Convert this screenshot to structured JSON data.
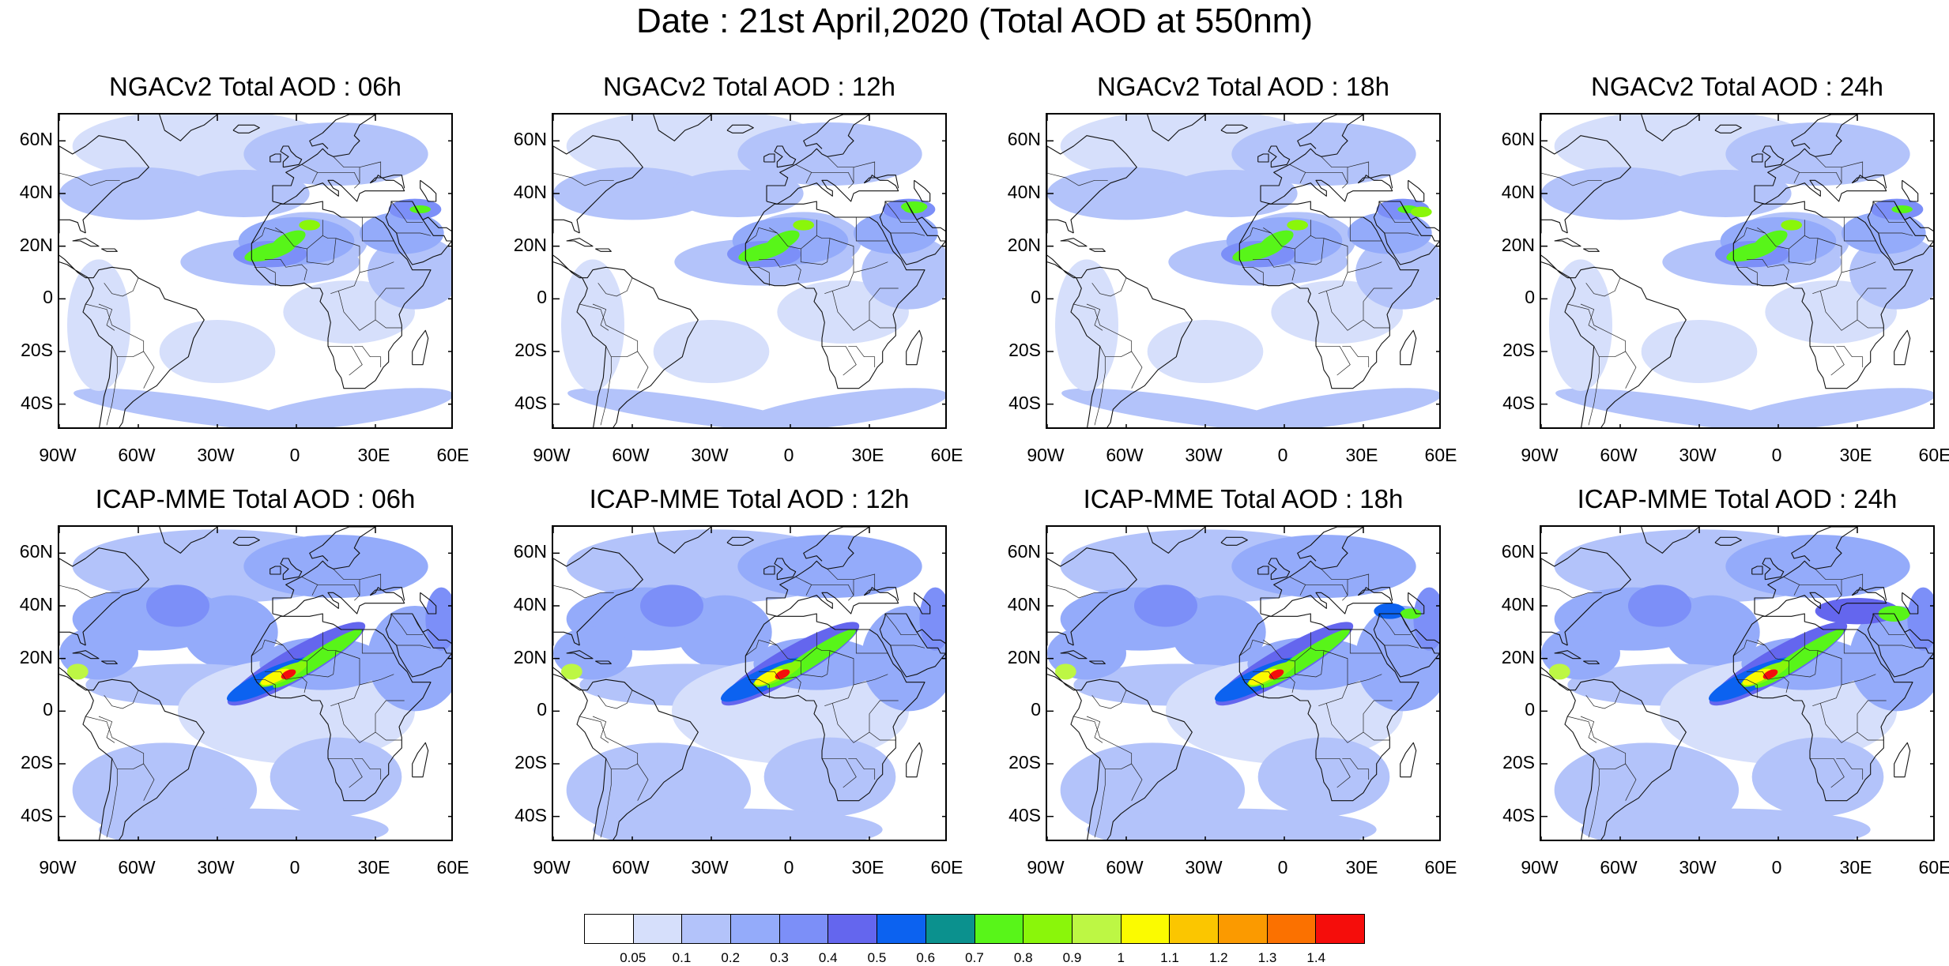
{
  "title": "Date : 21st April,2020 (Total AOD at 550nm)",
  "panels": [
    {
      "title": "NGACv2 Total AOD : 06h",
      "model": "NGACv2",
      "hour": "06h"
    },
    {
      "title": "NGACv2 Total AOD : 12h",
      "model": "NGACv2",
      "hour": "12h"
    },
    {
      "title": "NGACv2 Total AOD : 18h",
      "model": "NGACv2",
      "hour": "18h"
    },
    {
      "title": "NGACv2 Total AOD : 24h",
      "model": "NGACv2",
      "hour": "24h"
    },
    {
      "title": "ICAP-MME Total AOD : 06h",
      "model": "ICAP-MME",
      "hour": "06h"
    },
    {
      "title": "ICAP-MME Total AOD : 12h",
      "model": "ICAP-MME",
      "hour": "12h"
    },
    {
      "title": "ICAP-MME Total AOD : 18h",
      "model": "ICAP-MME",
      "hour": "18h"
    },
    {
      "title": "ICAP-MME Total AOD : 24h",
      "model": "ICAP-MME",
      "hour": "24h"
    }
  ],
  "lat_ticks": [
    "60N",
    "40N",
    "20N",
    "0",
    "20S",
    "40S"
  ],
  "lon_ticks": [
    "90W",
    "60W",
    "30W",
    "0",
    "30E",
    "60E"
  ],
  "colorbar": {
    "colors": [
      "#ffffff",
      "#d6dffb",
      "#b3c3fa",
      "#94abfa",
      "#7c8ff8",
      "#6466ee",
      "#0c62f0",
      "#0b918e",
      "#58f519",
      "#8af60a",
      "#bdf744",
      "#fbfb00",
      "#fbc600",
      "#fb9a00",
      "#fb7100",
      "#f50d0b"
    ],
    "labels": [
      "0.05",
      "0.1",
      "0.2",
      "0.3",
      "0.4",
      "0.5",
      "0.6",
      "0.7",
      "0.8",
      "0.9",
      "1",
      "1.1",
      "1.2",
      "1.3",
      "1.4"
    ]
  }
}
